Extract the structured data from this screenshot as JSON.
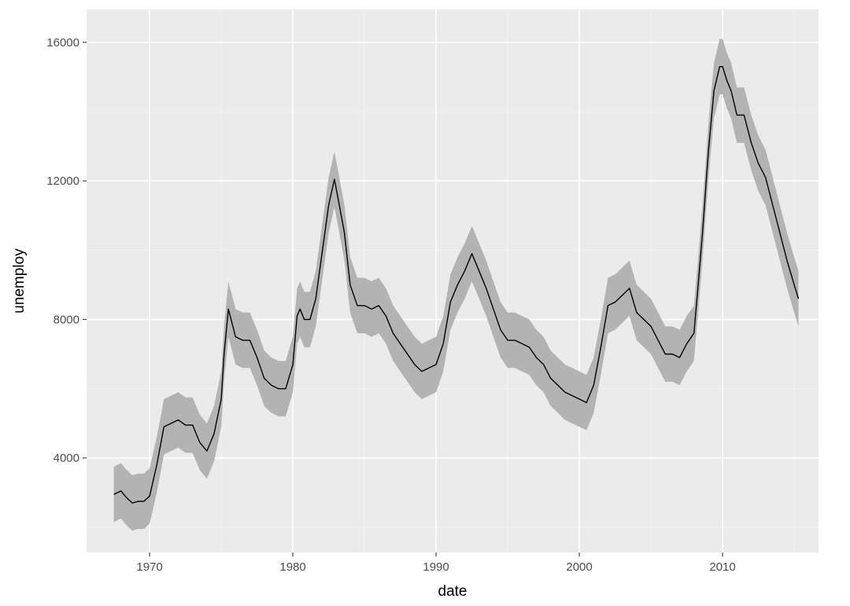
{
  "chart_data": {
    "type": "area",
    "title": "",
    "xlabel": "date",
    "ylabel": "unemploy",
    "xlim": [
      1965.6,
      2016.7
    ],
    "ylim": [
      1270,
      16950
    ],
    "x_ticks": [
      1970,
      1980,
      1990,
      2000,
      2010
    ],
    "x_tick_labels": [
      "1970",
      "1980",
      "1990",
      "2000",
      "2010"
    ],
    "y_ticks": [
      4000,
      8000,
      12000,
      16000
    ],
    "y_tick_labels": [
      "4000",
      "8000",
      "12000",
      "16000"
    ],
    "grid": true,
    "legend": "none",
    "band_halfwidth": 800,
    "colors": {
      "panel": "#ebebeb",
      "grid_major": "#ffffff",
      "grid_minor": "#f5f5f5",
      "line": "#000000",
      "band": "#b3b3b3"
    },
    "series": [
      {
        "x": [
          1967.5,
          1968.0,
          1968.4,
          1968.8,
          1969.2,
          1969.6,
          1970.0,
          1970.5,
          1971.0,
          1971.5,
          1972.0,
          1972.5,
          1973.0,
          1973.5,
          1974.0,
          1974.5,
          1975.0,
          1975.2,
          1975.5,
          1976.0,
          1976.5,
          1977.0,
          1977.5,
          1978.0,
          1978.5,
          1979.0,
          1979.5,
          1980.0,
          1980.3,
          1980.5,
          1980.8,
          1981.2,
          1981.6,
          1982.0,
          1982.5,
          1982.9,
          1983.2,
          1983.6,
          1984.0,
          1984.5,
          1985.0,
          1985.5,
          1986.0,
          1986.5,
          1987.0,
          1987.5,
          1988.0,
          1988.5,
          1989.0,
          1989.5,
          1990.0,
          1990.5,
          1991.0,
          1991.5,
          1992.0,
          1992.5,
          1993.0,
          1993.5,
          1994.0,
          1994.5,
          1995.0,
          1995.5,
          1996.0,
          1996.5,
          1997.0,
          1997.5,
          1998.0,
          1998.5,
          1999.0,
          1999.5,
          2000.0,
          2000.5,
          2001.0,
          2001.5,
          2002.0,
          2002.5,
          2003.0,
          2003.5,
          2004.0,
          2004.5,
          2005.0,
          2005.5,
          2006.0,
          2006.5,
          2007.0,
          2007.5,
          2008.0,
          2008.3,
          2008.6,
          2009.0,
          2009.4,
          2009.8,
          2010.0,
          2010.3,
          2010.6,
          2011.0,
          2011.5,
          2012.0,
          2012.5,
          2013.0,
          2013.5,
          2014.0,
          2014.5,
          2015.0,
          2015.3
        ],
        "y": [
          2950,
          3050,
          2850,
          2700,
          2750,
          2750,
          2900,
          3800,
          4900,
          5000,
          5100,
          4950,
          4950,
          4450,
          4200,
          4700,
          5700,
          7000,
          8300,
          7500,
          7400,
          7400,
          6900,
          6300,
          6100,
          6000,
          6000,
          6700,
          8100,
          8300,
          8000,
          8000,
          8600,
          9800,
          11300,
          12050,
          11400,
          10500,
          9000,
          8400,
          8400,
          8300,
          8400,
          8100,
          7600,
          7300,
          7000,
          6700,
          6500,
          6600,
          6700,
          7300,
          8500,
          9000,
          9400,
          9900,
          9400,
          8900,
          8300,
          7700,
          7400,
          7400,
          7300,
          7200,
          6900,
          6700,
          6300,
          6100,
          5900,
          5800,
          5700,
          5600,
          6100,
          7200,
          8400,
          8500,
          8700,
          8900,
          8200,
          8000,
          7800,
          7400,
          7000,
          7000,
          6900,
          7300,
          7600,
          9000,
          10500,
          12800,
          14600,
          15300,
          15300,
          14900,
          14600,
          13900,
          13900,
          13100,
          12500,
          12100,
          11300,
          10500,
          9700,
          9000,
          8600
        ]
      }
    ]
  }
}
